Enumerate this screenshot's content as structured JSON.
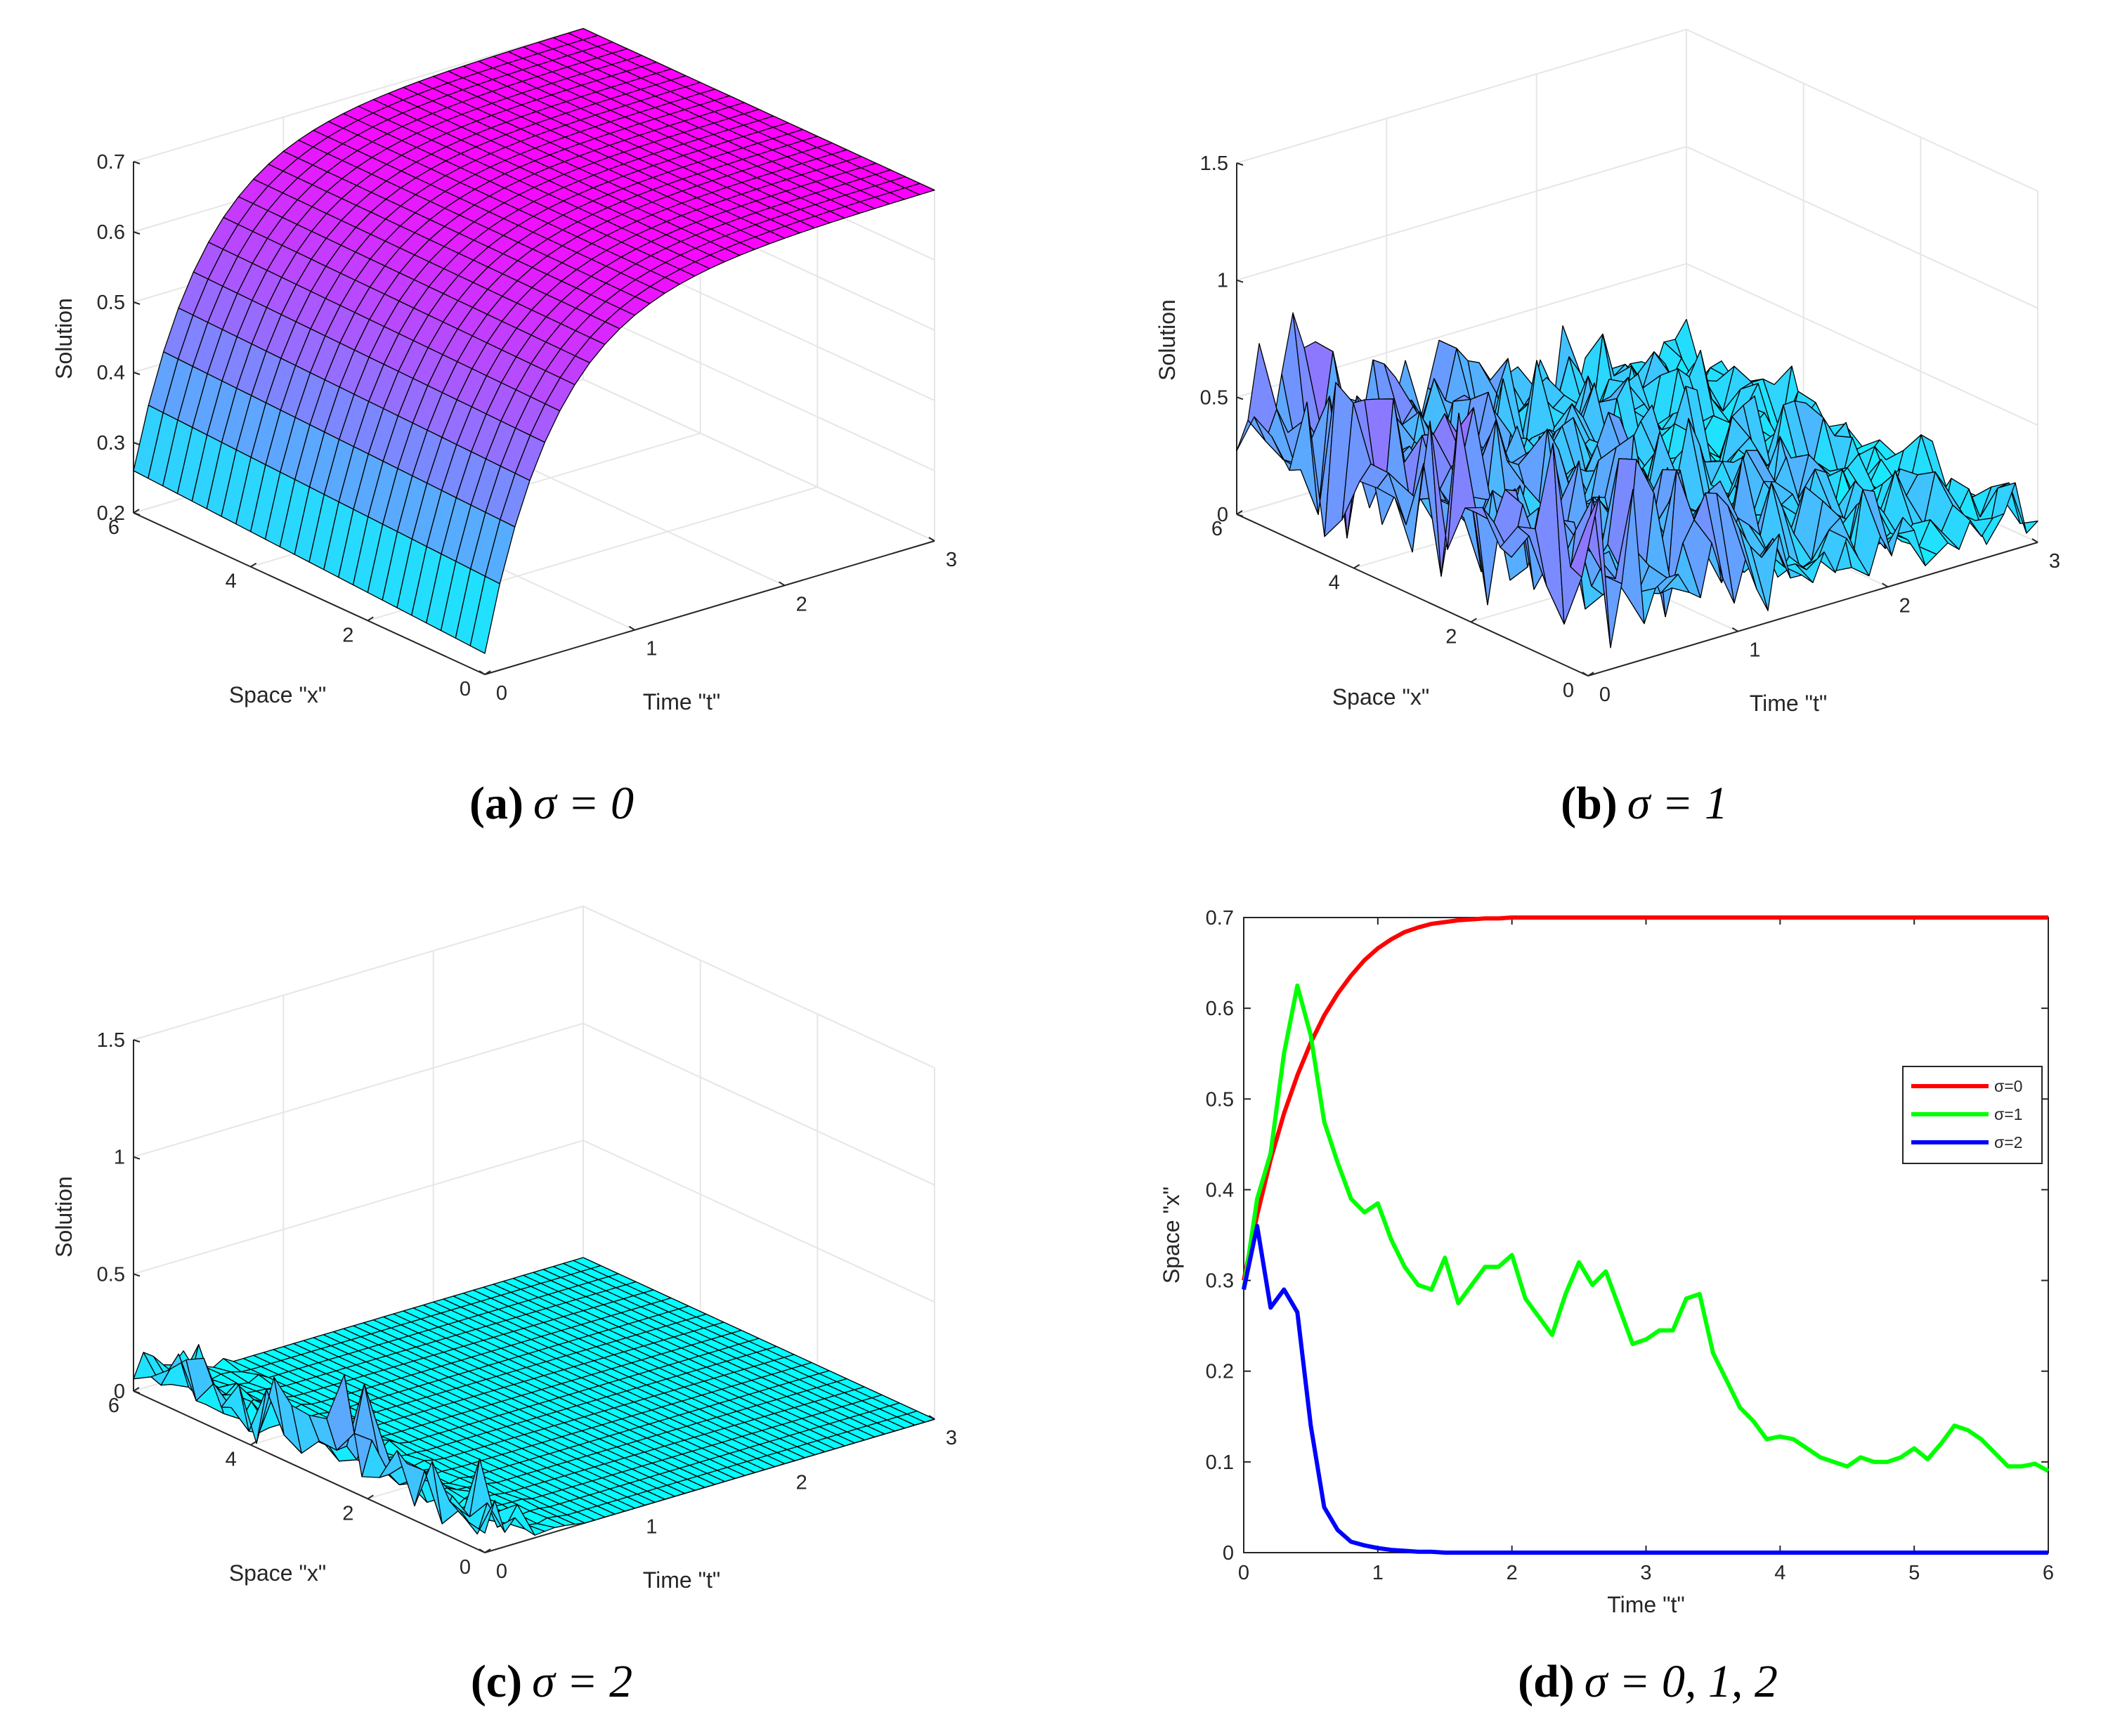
{
  "chart_data": [
    {
      "id": "a",
      "type": "surface",
      "caption": {
        "label": "(a)",
        "math": "σ = 0"
      },
      "zlabel": "Solution",
      "xlabel": "Space \"x\"",
      "ylabel": "Time \"t\"",
      "z_ticks": [
        "0.2",
        "0.3",
        "0.4",
        "0.5",
        "0.6",
        "0.7"
      ],
      "zlim": [
        0.2,
        0.7
      ],
      "x_ticks": [
        "0",
        "2",
        "4",
        "6"
      ],
      "t_ticks": [
        "0",
        "1",
        "2",
        "3"
      ],
      "description_values": {
        "initial_min": 0.23,
        "steady_state": 0.7
      }
    },
    {
      "id": "b",
      "type": "surface",
      "caption": {
        "label": "(b)",
        "math": "σ = 1"
      },
      "zlabel": "Solution",
      "xlabel": "Space \"x\"",
      "ylabel": "Time \"t\"",
      "z_ticks": [
        "0",
        "0.5",
        "1",
        "1.5"
      ],
      "zlim": [
        0,
        1.5
      ],
      "x_ticks": [
        "0",
        "2",
        "4",
        "6"
      ],
      "t_ticks": [
        "0",
        "1",
        "2",
        "3"
      ]
    },
    {
      "id": "c",
      "type": "surface",
      "caption": {
        "label": "(c)",
        "math": "σ = 2"
      },
      "zlabel": "Solution",
      "xlabel": "Space \"x\"",
      "ylabel": "Time \"t\"",
      "z_ticks": [
        "0",
        "0.5",
        "1",
        "1.5"
      ],
      "zlim": [
        0,
        1.5
      ],
      "x_ticks": [
        "0",
        "2",
        "4",
        "6"
      ],
      "t_ticks": [
        "0",
        "1",
        "2",
        "3"
      ]
    },
    {
      "id": "d",
      "type": "line",
      "caption": {
        "label": "(d)",
        "math": "σ = 0, 1, 2"
      },
      "xlabel": "Time \"t\"",
      "ylabel": "Space \"x\"",
      "xlim": [
        0,
        6
      ],
      "ylim": [
        0,
        0.7
      ],
      "x_ticks": [
        "0",
        "1",
        "2",
        "3",
        "4",
        "5",
        "6"
      ],
      "y_ticks": [
        "0",
        "0.1",
        "0.2",
        "0.3",
        "0.4",
        "0.5",
        "0.6",
        "0.7"
      ],
      "legend_position": "right",
      "x": [
        0,
        0.1,
        0.2,
        0.3,
        0.4,
        0.5,
        0.6,
        0.7,
        0.8,
        0.9,
        1.0,
        1.1,
        1.2,
        1.3,
        1.4,
        1.5,
        1.6,
        1.7,
        1.8,
        1.9,
        2.0,
        2.1,
        2.2,
        2.3,
        2.4,
        2.5,
        2.6,
        2.7,
        2.8,
        2.9,
        3.0,
        3.1,
        3.2,
        3.3,
        3.4,
        3.5,
        3.6,
        3.7,
        3.8,
        3.9,
        4.0,
        4.1,
        4.2,
        4.3,
        4.4,
        4.5,
        4.6,
        4.7,
        4.8,
        4.9,
        5.0,
        5.1,
        5.2,
        5.3,
        5.4,
        5.5,
        5.6,
        5.7,
        5.8,
        5.9,
        6.0
      ],
      "series": [
        {
          "name": "σ=0",
          "color": "#ff0000",
          "values": [
            0.3,
            0.372,
            0.433,
            0.484,
            0.526,
            0.562,
            0.592,
            0.616,
            0.636,
            0.653,
            0.666,
            0.676,
            0.684,
            0.689,
            0.693,
            0.695,
            0.697,
            0.698,
            0.699,
            0.699,
            0.7,
            0.7,
            0.7,
            0.7,
            0.7,
            0.7,
            0.7,
            0.7,
            0.7,
            0.7,
            0.7,
            0.7,
            0.7,
            0.7,
            0.7,
            0.7,
            0.7,
            0.7,
            0.7,
            0.7,
            0.7,
            0.7,
            0.7,
            0.7,
            0.7,
            0.7,
            0.7,
            0.7,
            0.7,
            0.7,
            0.7,
            0.7,
            0.7,
            0.7,
            0.7,
            0.7,
            0.7,
            0.7,
            0.7,
            0.7,
            0.7
          ]
        },
        {
          "name": "σ=1",
          "color": "#00ff00",
          "values": [
            0.29,
            0.39,
            0.44,
            0.55,
            0.625,
            0.57,
            0.475,
            0.43,
            0.39,
            0.375,
            0.385,
            0.345,
            0.315,
            0.295,
            0.29,
            0.325,
            0.275,
            0.295,
            0.315,
            0.315,
            0.328,
            0.28,
            0.26,
            0.24,
            0.285,
            0.32,
            0.295,
            0.31,
            0.27,
            0.23,
            0.235,
            0.245,
            0.245,
            0.28,
            0.285,
            0.22,
            0.19,
            0.16,
            0.145,
            0.125,
            0.128,
            0.125,
            0.115,
            0.105,
            0.1,
            0.095,
            0.105,
            0.1,
            0.1,
            0.105,
            0.115,
            0.103,
            0.12,
            0.14,
            0.135,
            0.125,
            0.11,
            0.095,
            0.095,
            0.098,
            0.09
          ]
        },
        {
          "name": "σ=2",
          "color": "#0000ff",
          "values": [
            0.29,
            0.36,
            0.27,
            0.29,
            0.265,
            0.14,
            0.05,
            0.025,
            0.012,
            0.008,
            0.005,
            0.003,
            0.002,
            0.001,
            0.001,
            0,
            0,
            0,
            0,
            0,
            0,
            0,
            0,
            0,
            0,
            0,
            0,
            0,
            0,
            0,
            0,
            0,
            0,
            0,
            0,
            0,
            0,
            0,
            0,
            0,
            0,
            0,
            0,
            0,
            0,
            0,
            0,
            0,
            0,
            0,
            0,
            0,
            0,
            0,
            0,
            0,
            0,
            0,
            0,
            0,
            0
          ]
        }
      ]
    }
  ]
}
